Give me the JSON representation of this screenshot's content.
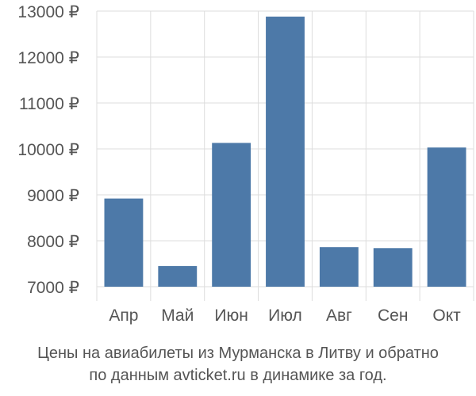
{
  "chart_data": {
    "type": "bar",
    "categories": [
      "Апр",
      "Май",
      "Июн",
      "Июл",
      "Авг",
      "Сен",
      "Окт"
    ],
    "values": [
      8920,
      7450,
      10130,
      12880,
      7860,
      7840,
      10030
    ],
    "currency_suffix": " ₽",
    "yticks": [
      "7000 ₽",
      "8000 ₽",
      "9000 ₽",
      "10000 ₽",
      "11000 ₽",
      "12000 ₽",
      "13000 ₽"
    ],
    "ylim": [
      7000,
      13000
    ],
    "grid": true,
    "bar_color": "#4d79a8",
    "grid_color": "#dddddd",
    "caption_line1": "Цены на авиабилеты из Мурманска в Литву и обратно",
    "caption_line2": "по данным avticket.ru в динамике за год."
  }
}
